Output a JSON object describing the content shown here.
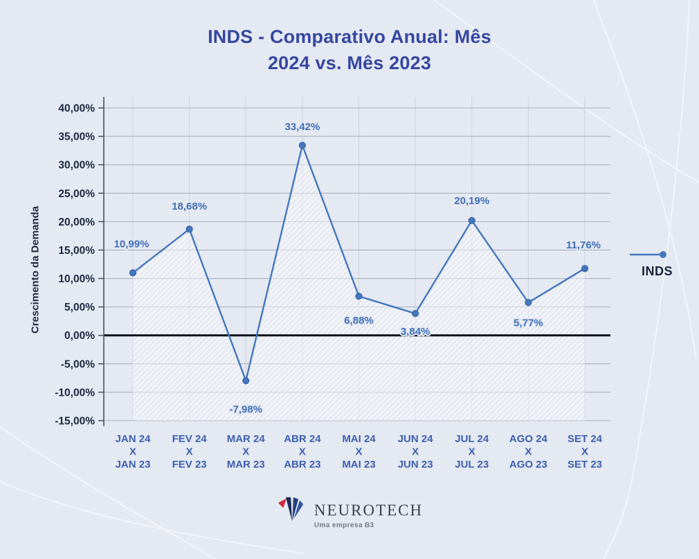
{
  "header": {
    "title_line1": "INDS - Comparativo Anual: Mês",
    "title_line2": "2024 vs. Mês 2023"
  },
  "chart_data": {
    "type": "line",
    "title": "INDS - Comparativo Anual: Mês 2024 vs. Mês 2023",
    "ylabel": "Crescimento da Demanda",
    "xlabel": "",
    "ylim": [
      -15,
      40
    ],
    "ytick_step": 5,
    "ytick_labels": [
      "40,00%",
      "35,00%",
      "30,00%",
      "25,00%",
      "20,00%",
      "15,00%",
      "10,00%",
      "5,00%",
      "0,00%",
      "-5,00%",
      "-10,00%",
      "-15,00%"
    ],
    "categories": [
      "JAN 24\nX\nJAN 23",
      "FEV 24\nX\nFEV 23",
      "MAR 24\nX\nMAR 23",
      "ABR 24\nX\nABR 23",
      "MAI 24\nX\nMAI 23",
      "JUN 24\nX\nJUN 23",
      "JUL 24\nX\nJUL 23",
      "AGO 24\nX\nAGO 23",
      "SET 24\nX\nSET 23"
    ],
    "series": [
      {
        "name": "INDS",
        "values": [
          10.99,
          18.68,
          -7.98,
          33.42,
          6.88,
          3.84,
          20.19,
          5.77,
          11.76
        ],
        "point_labels": [
          "10,99%",
          "18,68%",
          "-7,98%",
          "33,42%",
          "6,88%",
          "3,84%",
          "20,19%",
          "5,77%",
          "11,76%"
        ]
      }
    ],
    "grid": true,
    "legend_position": "right",
    "area_fill": "hatched",
    "colors": {
      "line": "#4377bd",
      "marker": "#4377bd",
      "marker_edge": "#35639f",
      "zero_line": "#0d1015",
      "grid": "#a9afbe",
      "grid_vertical": "#ccd2df",
      "axis": "#4a4f58",
      "data_label": "#3f6fb6",
      "tick_label": "#1b2840",
      "category_label": "#3c5fae",
      "hatch_line": "#c3cbdc",
      "background": "#e5e9f2"
    }
  },
  "legend": {
    "label": "INDS"
  },
  "footer": {
    "brand": "NEUROTECH",
    "tagline": "Uma empresa B3"
  }
}
